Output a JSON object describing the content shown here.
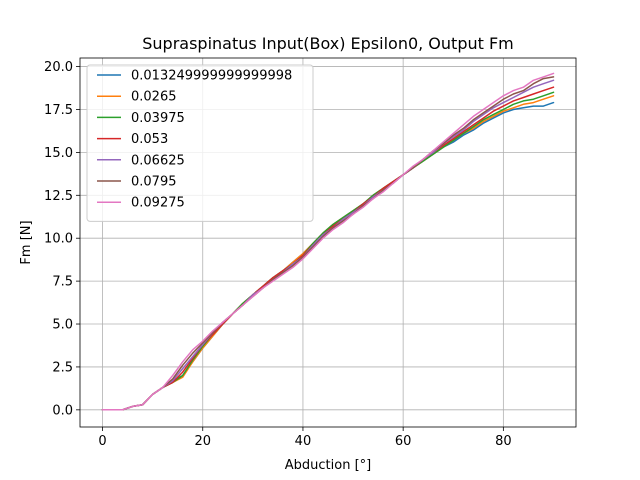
{
  "chart_data": {
    "type": "line",
    "title": "Supraspinatus Input(Box) Epsilon0, Output Fm",
    "xlabel": "Abduction [°]",
    "ylabel": "Fm [N]",
    "xlim": [
      -4.5,
      94.5
    ],
    "ylim": [
      -1.0,
      20.5
    ],
    "xticks": [
      0,
      20,
      40,
      60,
      80
    ],
    "xtick_labels": [
      "0",
      "20",
      "40",
      "60",
      "80"
    ],
    "yticks": [
      0.0,
      2.5,
      5.0,
      7.5,
      10.0,
      12.5,
      15.0,
      17.5,
      20.0
    ],
    "ytick_labels": [
      "0.0",
      "2.5",
      "5.0",
      "7.5",
      "10.0",
      "12.5",
      "15.0",
      "17.5",
      "20.0"
    ],
    "grid": true,
    "legend_position": "top-left",
    "x": [
      0,
      4,
      6,
      8,
      10,
      12,
      14,
      16,
      18,
      20,
      22,
      24,
      26,
      28,
      30,
      32,
      34,
      36,
      38,
      40,
      42,
      44,
      46,
      48,
      50,
      52,
      54,
      56,
      58,
      60,
      62,
      64,
      66,
      68,
      70,
      72,
      74,
      76,
      78,
      80,
      82,
      84,
      86,
      88,
      90
    ],
    "series": [
      {
        "name": "0.013249999999999998",
        "color": "#1f77b4",
        "values": [
          0,
          0,
          0.2,
          0.3,
          0.9,
          1.3,
          1.7,
          2.0,
          2.8,
          3.6,
          4.3,
          5.0,
          5.6,
          6.2,
          6.7,
          7.2,
          7.7,
          8.1,
          8.6,
          9.1,
          9.7,
          10.3,
          10.8,
          11.2,
          11.6,
          12.0,
          12.5,
          12.9,
          13.3,
          13.7,
          14.1,
          14.5,
          14.9,
          15.3,
          15.6,
          16.0,
          16.3,
          16.7,
          17.0,
          17.3,
          17.5,
          17.6,
          17.7,
          17.7,
          17.9
        ]
      },
      {
        "name": "0.0265",
        "color": "#ff7f0e",
        "values": [
          0,
          0,
          0.2,
          0.3,
          0.9,
          1.3,
          1.6,
          1.9,
          2.8,
          3.6,
          4.3,
          5.0,
          5.6,
          6.2,
          6.7,
          7.2,
          7.7,
          8.1,
          8.6,
          9.1,
          9.7,
          10.3,
          10.8,
          11.2,
          11.6,
          12.0,
          12.5,
          12.9,
          13.3,
          13.7,
          14.1,
          14.5,
          14.9,
          15.3,
          15.7,
          16.1,
          16.4,
          16.8,
          17.1,
          17.4,
          17.6,
          17.8,
          17.9,
          18.1,
          18.3
        ]
      },
      {
        "name": "0.03975",
        "color": "#2ca02c",
        "values": [
          0,
          0,
          0.2,
          0.3,
          0.9,
          1.3,
          1.6,
          2.0,
          2.9,
          3.7,
          4.4,
          5.0,
          5.6,
          6.2,
          6.7,
          7.2,
          7.7,
          8.1,
          8.5,
          9.0,
          9.7,
          10.3,
          10.8,
          11.2,
          11.6,
          12.0,
          12.5,
          12.9,
          13.3,
          13.7,
          14.1,
          14.5,
          14.9,
          15.3,
          15.7,
          16.1,
          16.5,
          16.9,
          17.2,
          17.5,
          17.8,
          18.0,
          18.1,
          18.3,
          18.5
        ]
      },
      {
        "name": "0.053",
        "color": "#d62728",
        "values": [
          0,
          0,
          0.2,
          0.3,
          0.9,
          1.3,
          1.6,
          2.2,
          3.0,
          3.8,
          4.4,
          5.0,
          5.6,
          6.1,
          6.7,
          7.2,
          7.7,
          8.1,
          8.5,
          9.0,
          9.6,
          10.2,
          10.7,
          11.1,
          11.5,
          12.0,
          12.4,
          12.9,
          13.3,
          13.7,
          14.1,
          14.6,
          15.0,
          15.4,
          15.8,
          16.2,
          16.6,
          17.0,
          17.4,
          17.7,
          18.0,
          18.2,
          18.4,
          18.6,
          18.8
        ]
      },
      {
        "name": "0.06625",
        "color": "#9467bd",
        "values": [
          0,
          0,
          0.2,
          0.3,
          0.9,
          1.3,
          1.7,
          2.4,
          3.1,
          3.8,
          4.5,
          5.1,
          5.6,
          6.1,
          6.7,
          7.1,
          7.6,
          8.0,
          8.5,
          8.9,
          9.6,
          10.2,
          10.6,
          11.1,
          11.5,
          11.9,
          12.4,
          12.8,
          13.2,
          13.7,
          14.1,
          14.6,
          15.0,
          15.5,
          15.9,
          16.3,
          16.8,
          17.2,
          17.6,
          17.9,
          18.2,
          18.5,
          18.8,
          19.0,
          19.2
        ]
      },
      {
        "name": "0.0795",
        "color": "#8c564b",
        "values": [
          0,
          0,
          0.2,
          0.3,
          0.9,
          1.3,
          1.8,
          2.6,
          3.3,
          3.9,
          4.5,
          5.1,
          5.6,
          6.1,
          6.6,
          7.1,
          7.6,
          8.0,
          8.4,
          8.9,
          9.5,
          10.1,
          10.6,
          11.0,
          11.4,
          11.9,
          12.3,
          12.8,
          13.2,
          13.7,
          14.1,
          14.6,
          15.1,
          15.5,
          16.0,
          16.4,
          16.9,
          17.3,
          17.7,
          18.1,
          18.4,
          18.6,
          19.0,
          19.3,
          19.4
        ]
      },
      {
        "name": "0.09275",
        "color": "#e377c2",
        "values": [
          0,
          0,
          0.2,
          0.3,
          0.9,
          1.3,
          2.0,
          2.8,
          3.5,
          4.0,
          4.6,
          5.1,
          5.6,
          6.1,
          6.6,
          7.1,
          7.5,
          7.9,
          8.3,
          8.8,
          9.4,
          10.0,
          10.5,
          10.9,
          11.4,
          11.8,
          12.3,
          12.7,
          13.2,
          13.7,
          14.2,
          14.6,
          15.1,
          15.6,
          16.1,
          16.6,
          17.1,
          17.5,
          17.9,
          18.3,
          18.6,
          18.8,
          19.2,
          19.4,
          19.6
        ]
      }
    ]
  }
}
